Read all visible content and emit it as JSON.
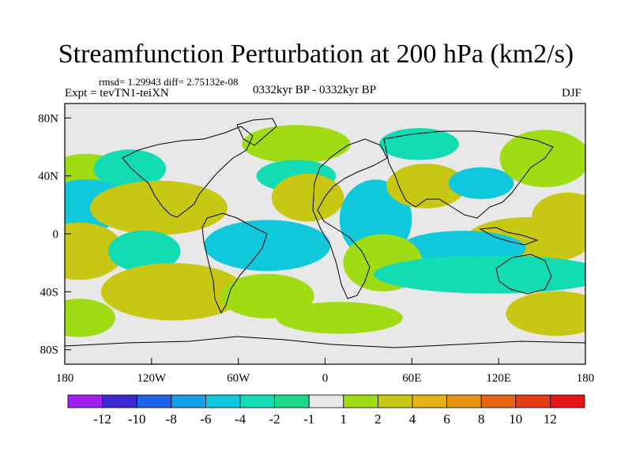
{
  "title": "Streamfunction Perturbation at 200 hPa (km2/s)",
  "stats": "rmsd= 1.29943 diff= 2.75132e-08",
  "left_label": "Expt = tevTN1-teiXN",
  "center_label": "0332kyr BP - 0332kyr BP",
  "right_label": "DJF",
  "axes": {
    "lat_ticks": [
      {
        "label": "80N",
        "lat": 80
      },
      {
        "label": "40N",
        "lat": 40
      },
      {
        "label": "0",
        "lat": 0
      },
      {
        "label": "40S",
        "lat": -40
      },
      {
        "label": "80S",
        "lat": -80
      }
    ],
    "lon_ticks": [
      {
        "label": "180",
        "lon": -180
      },
      {
        "label": "120W",
        "lon": -120
      },
      {
        "label": "60W",
        "lon": -60
      },
      {
        "label": "0",
        "lon": 0
      },
      {
        "label": "60E",
        "lon": 60
      },
      {
        "label": "120E",
        "lon": 120
      },
      {
        "label": "180",
        "lon": 180
      }
    ]
  },
  "colorbar": {
    "colors": [
      "#a020f0",
      "#3c28d2",
      "#1e64e6",
      "#14a0e6",
      "#10c8dc",
      "#11dcb4",
      "#1ed98a",
      "#e8e8e8",
      "#a0dc14",
      "#c8c814",
      "#e6b214",
      "#e69614",
      "#e66414",
      "#e63c14",
      "#e61414"
    ],
    "labels": [
      "-12",
      "-10",
      "-8",
      "-6",
      "-4",
      "-2",
      "-1",
      "1",
      "2",
      "4",
      "6",
      "8",
      "10",
      "12"
    ]
  },
  "map_features": {
    "background": "#e8e8e8",
    "coastline_color": "#000000",
    "anomalies": [
      {
        "name": "green-cell",
        "lon": -165,
        "lat": 42,
        "rx": 22,
        "ry": 12,
        "color": "#a0dc14"
      },
      {
        "name": "green-cell",
        "lon": -135,
        "lat": 45,
        "rx": 20,
        "ry": 12,
        "color": "#11dcb4"
      },
      {
        "name": "cyan-cell",
        "lon": -165,
        "lat": 20,
        "rx": 25,
        "ry": 16,
        "color": "#10c8dc"
      },
      {
        "name": "orange-cell",
        "lon": -115,
        "lat": 18,
        "rx": 38,
        "ry": 17,
        "color": "#c8c814"
      },
      {
        "name": "green-cell",
        "lon": -170,
        "lat": -12,
        "rx": 25,
        "ry": 18,
        "color": "#c8c814"
      },
      {
        "name": "cyan-cell",
        "lon": -125,
        "lat": -12,
        "rx": 20,
        "ry": 13,
        "color": "#11dcb4"
      },
      {
        "name": "cyan-cell",
        "lon": -40,
        "lat": -8,
        "rx": 35,
        "ry": 16,
        "color": "#10c8dc"
      },
      {
        "name": "orange-cell",
        "lon": -105,
        "lat": -40,
        "rx": 40,
        "ry": 18,
        "color": "#c8c814"
      },
      {
        "name": "green-cell",
        "lon": -40,
        "lat": -43,
        "rx": 26,
        "ry": 14,
        "color": "#a0dc14"
      },
      {
        "name": "green-cell",
        "lon": -20,
        "lat": 62,
        "rx": 30,
        "ry": 12,
        "color": "#a0dc14"
      },
      {
        "name": "cyan-cell",
        "lon": -20,
        "lat": 40,
        "rx": 22,
        "ry": 10,
        "color": "#11dcb4"
      },
      {
        "name": "orange-cell",
        "lon": -12,
        "lat": 25,
        "rx": 20,
        "ry": 15,
        "color": "#c8c814"
      },
      {
        "name": "cyan-cell",
        "lon": 35,
        "lat": 10,
        "rx": 20,
        "ry": 25,
        "color": "#10c8dc"
      },
      {
        "name": "green-cell",
        "lon": 65,
        "lat": 62,
        "rx": 22,
        "ry": 10,
        "color": "#11dcb4"
      },
      {
        "name": "orange-cell",
        "lon": 70,
        "lat": 33,
        "rx": 22,
        "ry": 14,
        "color": "#c8c814"
      },
      {
        "name": "cyan-cell",
        "lon": 108,
        "lat": 35,
        "rx": 18,
        "ry": 10,
        "color": "#10c8dc"
      },
      {
        "name": "green-cell",
        "lon": 152,
        "lat": 52,
        "rx": 25,
        "ry": 18,
        "color": "#a0dc14"
      },
      {
        "name": "orange-cell",
        "lon": 168,
        "lat": 12,
        "rx": 20,
        "ry": 15,
        "color": "#c8c814"
      },
      {
        "name": "orange-cell",
        "lon": 140,
        "lat": -5,
        "rx": 35,
        "ry": 15,
        "color": "#c8c814"
      },
      {
        "name": "cyan-cell",
        "lon": 95,
        "lat": -10,
        "rx": 35,
        "ry": 11,
        "color": "#10c8dc"
      },
      {
        "name": "green-cell",
        "lon": 40,
        "lat": -20,
        "rx": 22,
        "ry": 18,
        "color": "#a0dc14"
      },
      {
        "name": "cyan-cell",
        "lon": 115,
        "lat": -28,
        "rx": 65,
        "ry": 12,
        "color": "#11dcb4"
      },
      {
        "name": "orange-cell",
        "lon": 160,
        "lat": -55,
        "rx": 28,
        "ry": 14,
        "color": "#c8c814"
      },
      {
        "name": "orange-cell",
        "lon": -170,
        "lat": -58,
        "rx": 20,
        "ry": 12,
        "color": "#a0dc14"
      },
      {
        "name": "green-cell",
        "lon": 10,
        "lat": -58,
        "rx": 35,
        "ry": 10,
        "color": "#a0dc14"
      }
    ]
  }
}
